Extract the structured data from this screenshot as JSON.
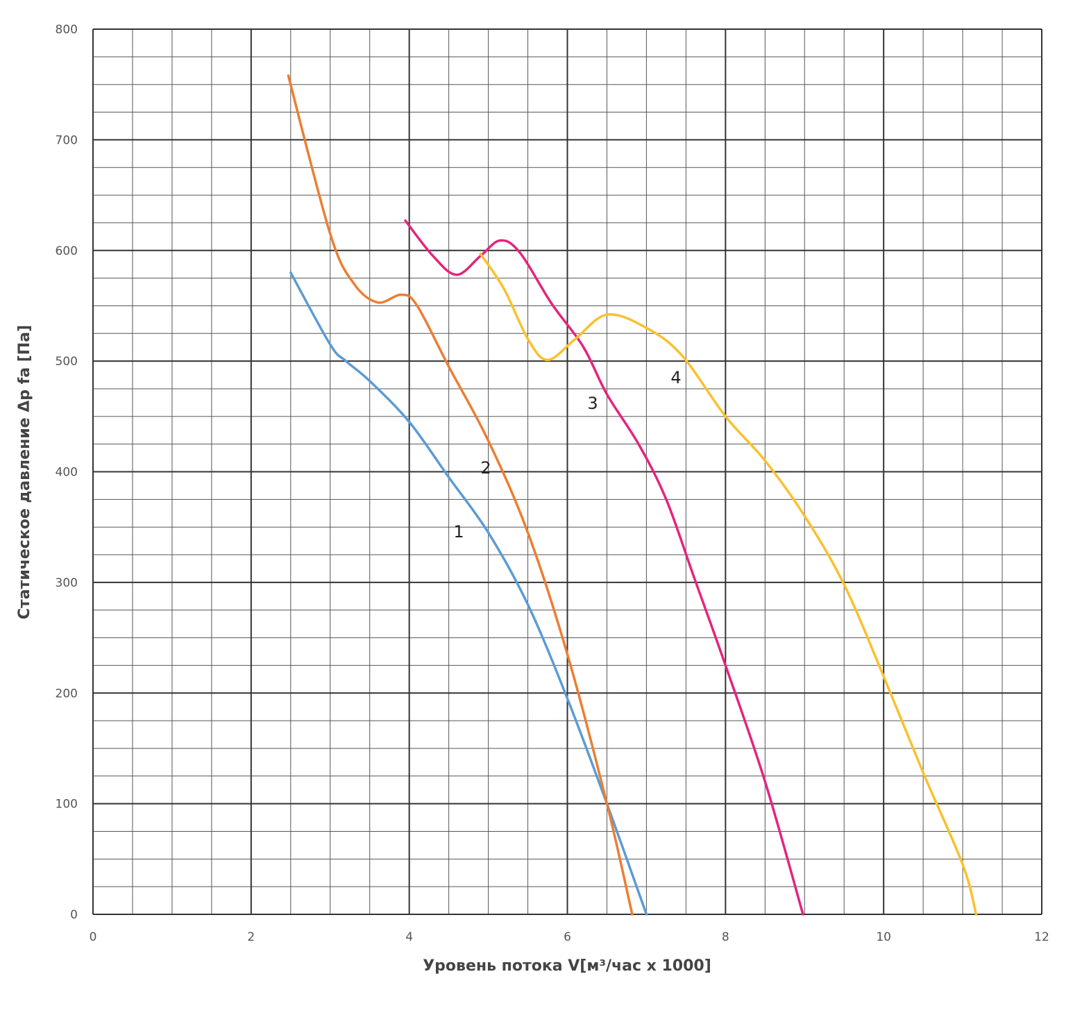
{
  "chart_data": {
    "type": "line",
    "xlabel": "Уровень потока V[м³/час x 1000]",
    "ylabel": "Статическое давление Δp fa [Па]",
    "xlim": [
      0,
      12
    ],
    "xticks": [
      0,
      2,
      4,
      6,
      8,
      10,
      12
    ],
    "ylim": [
      0,
      800
    ],
    "yticks": [
      0,
      100,
      200,
      300,
      400,
      500,
      600,
      700,
      800
    ],
    "grid": true,
    "series": [
      {
        "name": "1",
        "color": "#5b9bd5",
        "x": [
          2.5,
          3,
          3.2,
          3.5,
          4,
          4.5,
          5,
          5.5,
          6,
          6.5,
          7
        ],
        "values": [
          580,
          515,
          500,
          482,
          445,
          395,
          345,
          280,
          195,
          100,
          0
        ]
      },
      {
        "name": "2",
        "color": "#ed7d31",
        "x": [
          2.47,
          3,
          3.3,
          3.6,
          3.9,
          4.1,
          4.5,
          5,
          5.5,
          6,
          6.5,
          6.82
        ],
        "values": [
          758,
          615,
          570,
          553,
          560,
          550,
          495,
          428,
          345,
          235,
          100,
          0
        ]
      },
      {
        "name": "3",
        "color": "#e6237e",
        "x": [
          3.95,
          4.3,
          4.6,
          4.9,
          5.15,
          5.4,
          5.8,
          6.2,
          6.5,
          6.9,
          7.25,
          7.6,
          8,
          8.5,
          8.98
        ],
        "values": [
          627,
          595,
          578,
          595,
          609,
          598,
          552,
          513,
          470,
          425,
          375,
          305,
          225,
          120,
          0
        ]
      },
      {
        "name": "4",
        "color": "#fbc02d",
        "x": [
          4.9,
          5.2,
          5.5,
          5.75,
          6.1,
          6.5,
          7,
          7.45,
          8,
          8.5,
          9,
          9.5,
          10,
          10.5,
          11,
          11.17
        ],
        "values": [
          597,
          565,
          520,
          501,
          520,
          542,
          530,
          505,
          450,
          410,
          360,
          298,
          215,
          128,
          45,
          0
        ]
      }
    ]
  }
}
